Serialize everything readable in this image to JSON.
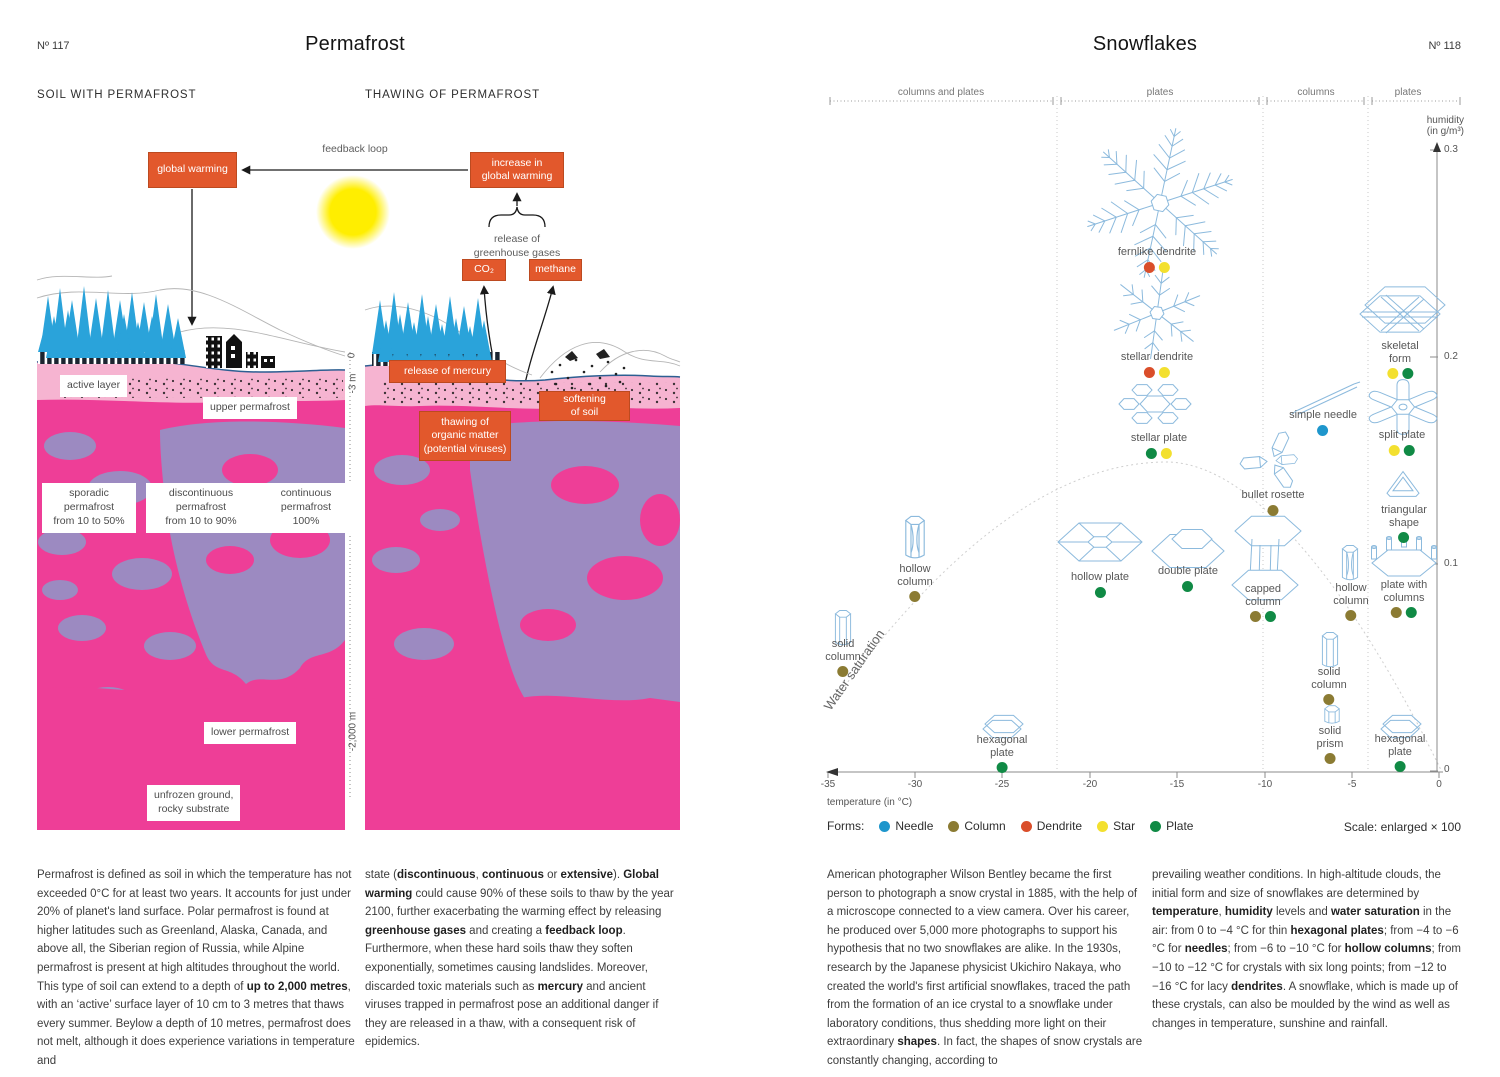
{
  "left_page": {
    "number": "Nº 117",
    "title": "Permafrost",
    "section1": "SOIL WITH PERMAFROST",
    "section2": "THAWING OF PERMAFROST",
    "soil_diagram": {
      "global_warming": "global warming",
      "feedback_loop": "feedback loop",
      "active_layer": "active layer",
      "upper_permafrost": "upper permafrost",
      "sporadic": "sporadic\npermafrost\nfrom 10 to 50%",
      "discontinuous": "discontinuous\npermafrost\nfrom 10 to 90%",
      "continuous": "continuous\npermafrost\n100%",
      "lower_permafrost": "lower permafrost",
      "unfrozen": "unfrozen ground,\nrocky substrate",
      "depth_0": "0",
      "depth_3": "-3 m",
      "depth_2000": "-2,000 m"
    },
    "thaw_diagram": {
      "increase": "increase in\nglobal warming",
      "release_ghg": "release of\ngreenhouse gases",
      "co2": "CO₂",
      "methane": "methane",
      "mercury": "release of mercury",
      "softening": "softening\nof soil",
      "thawing": "thawing of\norganic matter\n(potential viruses)"
    },
    "body_col1": [
      {
        "t": "Permafrost is defined as soil in which the temperature has not exceeded 0°C for at least two years. It accounts for just under 20% of planet's land surface. Polar permafrost is found at higher latitudes such as Greenland, Alaska, Canada, and above all, the Siberian region of Russia, while Alpine permafrost is present at high altitudes throughout the world. This type of soil can extend to a depth of "
      },
      {
        "t": "up to 2,000 metres",
        "b": true
      },
      {
        "t": ", with an ‘active’ surface layer of 10 cm to 3 metres that thaws every summer. Beylow a depth of 10 metres, permafrost does not melt, although it does experience variations in temperature and"
      }
    ],
    "body_col2": [
      {
        "t": "state ("
      },
      {
        "t": "discontinuous",
        "b": true
      },
      {
        "t": ", "
      },
      {
        "t": "continuous",
        "b": true
      },
      {
        "t": " or "
      },
      {
        "t": "extensive",
        "b": true
      },
      {
        "t": "). "
      },
      {
        "t": "Global warming",
        "b": true
      },
      {
        "t": " could cause 90% of these soils to thaw by the year 2100, further exacerbating the warming effect by releasing "
      },
      {
        "t": "greenhouse gases",
        "b": true
      },
      {
        "t": " and creating a "
      },
      {
        "t": "feedback loop",
        "b": true
      },
      {
        "t": ". Furthermore, when these hard soils thaw they soften exponentially, sometimes causing landslides. Moreover, discarded toxic materials such as "
      },
      {
        "t": "mercury",
        "b": true
      },
      {
        "t": " and ancient viruses trapped in permafrost pose an additional danger if they are released in a thaw, with a consequent risk of epidemics."
      }
    ],
    "colors": {
      "permafrost_magenta": "#ee3e97",
      "active_layer_pink": "#f6b4d1",
      "deep_purple": "#9c8ac1",
      "tree_blue": "#2aa3da",
      "warning_orange": "#e2582c",
      "sun_yellow": "#ffee00"
    }
  },
  "right_page": {
    "number": "Nº 118",
    "title": "Snowflakes",
    "body_col1": [
      {
        "t": "American photographer Wilson Bentley became the first person to photograph a snow crystal in 1885, with the help of a microscope connected to a view camera. Over his career, he produced over 5,000 more photographs to support his hypothesis that no two snowflakes are alike. In the 1930s, research by the Japanese physicist Ukichiro Nakaya, who created the world's first artificial snowflakes, traced the path from the formation of an ice crystal to a snowflake under laboratory conditions, thus shedding more light on their extraordinary "
      },
      {
        "t": "shapes",
        "b": true
      },
      {
        "t": ". In fact, the shapes of snow crystals are constantly changing, according to"
      }
    ],
    "body_col2": [
      {
        "t": "prevailing weather conditions. In high-altitude clouds, the initial form and size of snowflakes are determined by "
      },
      {
        "t": "temperature",
        "b": true
      },
      {
        "t": ", "
      },
      {
        "t": "humidity",
        "b": true
      },
      {
        "t": " levels and "
      },
      {
        "t": "water saturation",
        "b": true
      },
      {
        "t": " in the air: from 0 to −4 °C for thin "
      },
      {
        "t": "hexagonal plates",
        "b": true
      },
      {
        "t": "; from −4 to −6 °C for "
      },
      {
        "t": "needles",
        "b": true
      },
      {
        "t": "; from −6 to −10 °C for "
      },
      {
        "t": "hollow columns",
        "b": true
      },
      {
        "t": "; from −10 to −12 °C for crystals with six long points; from −12 to −16 °C for lacy "
      },
      {
        "t": "dendrites",
        "b": true
      },
      {
        "t": ". A snowflake, which is made up of these crystals, can also be moulded by the wind as well as changes in temperature, sunshine and rainfall."
      }
    ]
  },
  "chart_data": {
    "type": "scatter",
    "title": "Snowflakes",
    "xlabel": "temperature (in °C)",
    "ylabel_lines": "humidity\n(in g/m³)",
    "xlim": [
      -35,
      0
    ],
    "ylim": [
      0,
      0.3
    ],
    "x_ticks": [
      "-35",
      "-30",
      "-25",
      "-20",
      "-15",
      "-10",
      "-5",
      "0"
    ],
    "y_ticks": [
      "0.3",
      "0.2",
      "0.1",
      "0"
    ],
    "grid": false,
    "curve_label": "Water saturation",
    "scale_note": "Scale: enlarged × 100",
    "zones": [
      {
        "label": "columns and plates",
        "range": [
          -35,
          -22
        ]
      },
      {
        "label": "plates",
        "range": [
          -22,
          -10
        ]
      },
      {
        "label": "columns",
        "range": [
          -10,
          -4
        ]
      },
      {
        "label": "plates",
        "range": [
          -4,
          0
        ]
      }
    ],
    "legend_title": "Forms:",
    "forms_legend": [
      {
        "form": "needle",
        "label": "Needle",
        "color": "#1e96cc"
      },
      {
        "form": "column",
        "label": "Column",
        "color": "#8b7b33"
      },
      {
        "form": "dendrite",
        "label": "Dendrite",
        "color": "#da4e2a"
      },
      {
        "form": "star",
        "label": "Star",
        "color": "#f3e02f"
      },
      {
        "form": "plate",
        "label": "Plate",
        "color": "#108a45"
      }
    ],
    "points": [
      {
        "label": "fernlike dendrite",
        "temp_c": -16,
        "humidity": 0.245,
        "forms": [
          "dendrite",
          "star"
        ]
      },
      {
        "label": "stellar dendrite",
        "temp_c": -16,
        "humidity": 0.195,
        "forms": [
          "dendrite",
          "star"
        ]
      },
      {
        "label": "stellar plate",
        "temp_c": -16,
        "humidity": 0.155,
        "forms": [
          "plate",
          "star"
        ]
      },
      {
        "label": "skeletal\nform",
        "temp_c": -2.5,
        "humidity": 0.195,
        "forms": [
          "star",
          "plate"
        ]
      },
      {
        "label": "simple needle",
        "temp_c": -6.5,
        "humidity": 0.165,
        "forms": [
          "needle"
        ]
      },
      {
        "label": "split plate",
        "temp_c": -2.5,
        "humidity": 0.157,
        "forms": [
          "star",
          "plate"
        ]
      },
      {
        "label": "bullet rosette",
        "temp_c": -9.5,
        "humidity": 0.128,
        "forms": [
          "column"
        ]
      },
      {
        "label": "triangular\nshape",
        "temp_c": -2,
        "humidity": 0.115,
        "forms": [
          "plate"
        ]
      },
      {
        "label": "hollow\ncolumn",
        "temp_c": -30,
        "humidity": 0.087,
        "forms": [
          "column"
        ]
      },
      {
        "label": "hollow plate",
        "temp_c": -19.5,
        "humidity": 0.088,
        "forms": [
          "plate"
        ]
      },
      {
        "label": "double plate",
        "temp_c": -14.5,
        "humidity": 0.091,
        "forms": [
          "plate"
        ]
      },
      {
        "label": "capped\ncolumn",
        "temp_c": -10,
        "humidity": 0.078,
        "forms": [
          "column",
          "plate"
        ]
      },
      {
        "label": "hollow\ncolumn",
        "temp_c": -5,
        "humidity": 0.079,
        "forms": [
          "column"
        ]
      },
      {
        "label": "plate with\ncolumns",
        "temp_c": -2,
        "humidity": 0.079,
        "forms": [
          "column",
          "plate"
        ]
      },
      {
        "label": "solid\ncolumn",
        "temp_c": -34,
        "humidity": 0.051,
        "forms": [
          "column"
        ]
      },
      {
        "label": "hexagonal\nplate",
        "temp_c": -25,
        "humidity": 0.006,
        "forms": [
          "plate"
        ]
      },
      {
        "label": "solid\ncolumn",
        "temp_c": -6.3,
        "humidity": 0.038,
        "forms": [
          "column"
        ]
      },
      {
        "label": "solid\nprism",
        "temp_c": -6.3,
        "humidity": 0.01,
        "forms": [
          "column"
        ]
      },
      {
        "label": "hexagonal\nplate",
        "temp_c": -2.3,
        "humidity": 0.005,
        "forms": [
          "plate"
        ]
      }
    ]
  }
}
